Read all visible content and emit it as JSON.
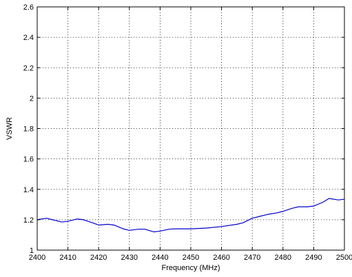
{
  "chart_data": {
    "type": "line",
    "title": "",
    "xlabel": "Frequency (MHz)",
    "ylabel": "VSWR",
    "xlim": [
      2400,
      2500
    ],
    "ylim": [
      1,
      2.6
    ],
    "xticks": [
      2400,
      2410,
      2420,
      2430,
      2440,
      2450,
      2460,
      2470,
      2480,
      2490,
      2500
    ],
    "yticks": [
      1,
      1.2,
      1.4,
      1.6,
      1.8,
      2,
      2.2,
      2.4,
      2.6
    ],
    "xtick_labels": [
      "2400",
      "2410",
      "2420",
      "2430",
      "2440",
      "2450",
      "2460",
      "2470",
      "2480",
      "2490",
      "2500"
    ],
    "ytick_labels": [
      "1",
      "1.2",
      "1.4",
      "1.6",
      "1.8",
      "2",
      "2.2",
      "2.4",
      "2.6"
    ],
    "grid": true,
    "grid_style": "dotted",
    "line_color": "#0000cc",
    "series": [
      {
        "x": [
          2400,
          2403,
          2405,
          2408,
          2410,
          2413,
          2415,
          2418,
          2420,
          2423,
          2425,
          2428,
          2430,
          2433,
          2435,
          2438,
          2440,
          2443,
          2445,
          2450,
          2455,
          2460,
          2465,
          2467,
          2470,
          2473,
          2475,
          2478,
          2480,
          2483,
          2485,
          2488,
          2490,
          2493,
          2495,
          2498,
          2500
        ],
        "y": [
          1.2,
          1.21,
          1.2,
          1.185,
          1.19,
          1.205,
          1.2,
          1.18,
          1.165,
          1.17,
          1.165,
          1.14,
          1.13,
          1.138,
          1.138,
          1.12,
          1.125,
          1.138,
          1.14,
          1.14,
          1.145,
          1.155,
          1.17,
          1.18,
          1.21,
          1.225,
          1.235,
          1.245,
          1.255,
          1.275,
          1.285,
          1.285,
          1.29,
          1.315,
          1.34,
          1.33,
          1.335
        ]
      }
    ]
  }
}
